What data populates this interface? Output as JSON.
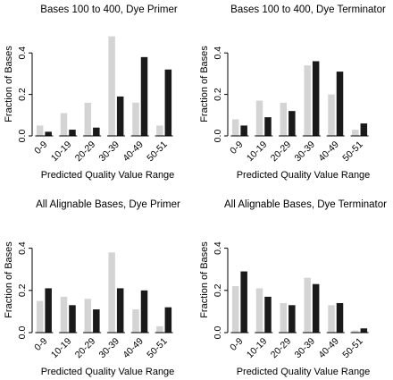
{
  "figure": {
    "series_colors": [
      "#d4d4d4",
      "#1a1a1a"
    ]
  },
  "chart_data": [
    {
      "type": "bar",
      "title": "Bases 100 to 400, Dye Primer",
      "xlabel": "Predicted Quality Value Range",
      "ylabel": "Fraction of Bases",
      "categories": [
        "0-9",
        "10-19",
        "20-29",
        "30-39",
        "40-49",
        "50-51"
      ],
      "yticks": [
        "0.0",
        "0.2",
        "0.4"
      ],
      "ylim": [
        0,
        0.5
      ],
      "series": [
        {
          "values": [
            0.05,
            0.11,
            0.16,
            0.48,
            0.16,
            0.05
          ]
        },
        {
          "values": [
            0.02,
            0.03,
            0.04,
            0.19,
            0.38,
            0.32
          ]
        }
      ]
    },
    {
      "type": "bar",
      "title": "Bases 100 to 400, Dye Terminator",
      "xlabel": "Predicted Quality Value Range",
      "ylabel": "Fraction of Bases",
      "categories": [
        "0-9",
        "10-19",
        "20-29",
        "30-39",
        "40-49",
        "50-51"
      ],
      "yticks": [
        "0.0",
        "0.2",
        "0.4"
      ],
      "ylim": [
        0,
        0.5
      ],
      "series": [
        {
          "values": [
            0.08,
            0.17,
            0.16,
            0.34,
            0.2,
            0.03
          ]
        },
        {
          "values": [
            0.05,
            0.09,
            0.12,
            0.36,
            0.31,
            0.06
          ]
        }
      ]
    },
    {
      "type": "bar",
      "title": "All Alignable Bases, Dye Primer",
      "xlabel": "Predicted Quality Value Range",
      "ylabel": "Fraction of Bases",
      "categories": [
        "0-9",
        "10-19",
        "20-29",
        "30-39",
        "40-49",
        "50-51"
      ],
      "yticks": [
        "0.0",
        "0.2",
        "0.4"
      ],
      "ylim": [
        0,
        0.5
      ],
      "series": [
        {
          "values": [
            0.15,
            0.17,
            0.16,
            0.38,
            0.11,
            0.03
          ]
        },
        {
          "values": [
            0.21,
            0.13,
            0.11,
            0.21,
            0.2,
            0.12
          ]
        }
      ]
    },
    {
      "type": "bar",
      "title": "All Alignable Bases, Dye Terminator",
      "xlabel": "Predicted Quality Value Range",
      "ylabel": "Fraction of Bases",
      "categories": [
        "0-9",
        "10-19",
        "20-29",
        "30-39",
        "40-49",
        "50-51"
      ],
      "yticks": [
        "0.0",
        "0.2",
        "0.4"
      ],
      "ylim": [
        0,
        0.5
      ],
      "series": [
        {
          "values": [
            0.22,
            0.21,
            0.14,
            0.26,
            0.13,
            0.01
          ]
        },
        {
          "values": [
            0.29,
            0.17,
            0.13,
            0.23,
            0.14,
            0.02
          ]
        }
      ]
    }
  ]
}
